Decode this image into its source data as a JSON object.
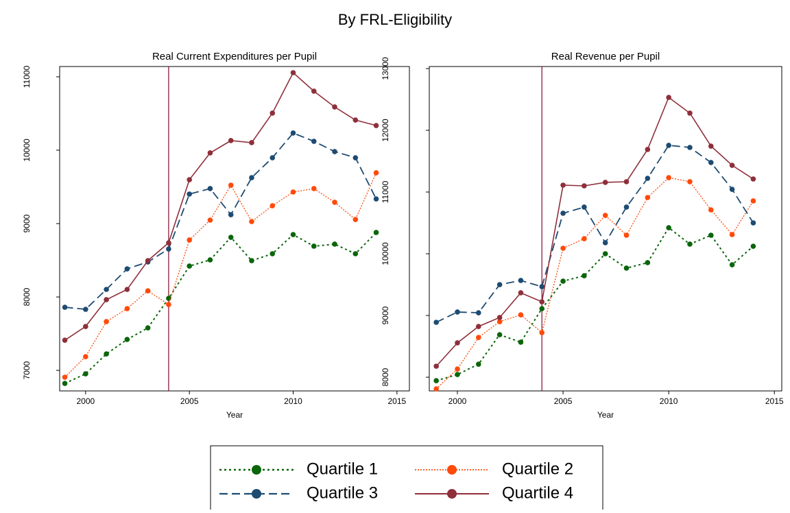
{
  "title": "By FRL-Eligibility",
  "chart_data": [
    {
      "type": "line",
      "title": "Real Current Expenditures per Pupil",
      "x_label": "Year",
      "x": [
        1999,
        2000,
        2001,
        2002,
        2003,
        2004,
        2005,
        2006,
        2007,
        2008,
        2009,
        2010,
        2011,
        2012,
        2013,
        2014
      ],
      "xlim": [
        1998.75,
        2015.6
      ],
      "xticks": [
        2000,
        2005,
        2010,
        2015
      ],
      "ylim": [
        6720,
        11140
      ],
      "yticks": [
        7000,
        8000,
        9000,
        10000,
        11000
      ],
      "vline": 2004,
      "vline_color": "#8b1a3a",
      "grid": false,
      "series": [
        {
          "name": "Quartile 1",
          "color": "#0b650b",
          "line_style": "dotted",
          "values": [
            6822,
            6953,
            7224,
            7421,
            7579,
            7981,
            8421,
            8505,
            8813,
            8495,
            8589,
            8850,
            8692,
            8720,
            8589,
            8879
          ]
        },
        {
          "name": "Quartile 2",
          "color": "#ff4a0a",
          "line_style": "dotted-fine",
          "values": [
            6907,
            7187,
            7664,
            7841,
            8084,
            7897,
            8776,
            9047,
            9523,
            9028,
            9243,
            9430,
            9477,
            9290,
            9056,
            9692
          ]
        },
        {
          "name": "Quartile 3",
          "color": "#1d4b72",
          "line_style": "dashed",
          "values": [
            7860,
            7832,
            8103,
            8383,
            8477,
            8654,
            9402,
            9477,
            9121,
            9626,
            9897,
            10234,
            10121,
            9981,
            9897,
            9336
          ]
        },
        {
          "name": "Quartile 4",
          "color": "#8e2f3a",
          "line_style": "solid",
          "values": [
            7411,
            7598,
            7963,
            8103,
            8495,
            8738,
            9598,
            9963,
            10131,
            10103,
            10505,
            11056,
            10804,
            10589,
            10411,
            10336
          ]
        }
      ]
    },
    {
      "type": "line",
      "title": "Real Revenue per Pupil",
      "x_label": "Year",
      "x": [
        1999,
        2000,
        2001,
        2002,
        2003,
        2004,
        2005,
        2006,
        2007,
        2008,
        2009,
        2010,
        2011,
        2012,
        2013,
        2014
      ],
      "xlim": [
        1998.67,
        2015.35
      ],
      "xticks": [
        2000,
        2005,
        2010,
        2015
      ],
      "ylim": [
        7778,
        13033
      ],
      "yticks": [
        8000,
        9000,
        10000,
        11000,
        12000,
        13000
      ],
      "vline": 2004,
      "vline_color": "#8b1a3a",
      "grid": false,
      "series": [
        {
          "color": "#0b650b",
          "line_style": "dotted",
          "values": [
            7944,
            8044,
            8211,
            8689,
            8567,
            9111,
            9556,
            9644,
            10000,
            9767,
            9856,
            10422,
            10156,
            10300,
            9822,
            10122
          ]
        },
        {
          "color": "#ff4a0a",
          "line_style": "dotted-fine",
          "values": [
            7811,
            8133,
            8644,
            8900,
            9011,
            8722,
            10089,
            10244,
            10622,
            10300,
            10911,
            11233,
            11167,
            10711,
            10311,
            10856
          ]
        },
        {
          "color": "#1d4b72",
          "line_style": "dashed",
          "values": [
            8889,
            9056,
            9044,
            9500,
            9567,
            9467,
            10656,
            10756,
            10178,
            10756,
            11222,
            11756,
            11722,
            11478,
            11044,
            10500
          ]
        },
        {
          "color": "#8e2f3a",
          "line_style": "solid",
          "values": [
            8178,
            8556,
            8822,
            8967,
            9367,
            9222,
            11111,
            11100,
            11156,
            11167,
            11689,
            12533,
            12278,
            11744,
            11433,
            11211
          ]
        }
      ]
    }
  ]
}
